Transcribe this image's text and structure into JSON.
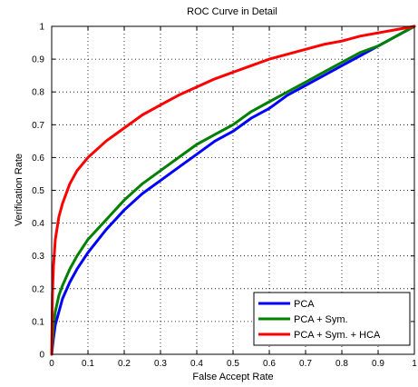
{
  "chart_data": {
    "type": "line",
    "title": "ROC Curve in Detail",
    "xlabel": "False Accept Rate",
    "ylabel": "Verification Rate",
    "xlim": [
      0,
      1
    ],
    "ylim": [
      0,
      1
    ],
    "xticks": [
      "0",
      "0.1",
      "0.2",
      "0.3",
      "0.4",
      "0.5",
      "0.6",
      "0.7",
      "0.8",
      "0.9",
      "1"
    ],
    "yticks": [
      "0",
      "0.1",
      "0.2",
      "0.3",
      "0.4",
      "0.5",
      "0.6",
      "0.7",
      "0.8",
      "0.9",
      "1"
    ],
    "grid": true,
    "legend_position": "bottom-right",
    "series": [
      {
        "name": "PCA",
        "color": "#0000ff",
        "x": [
          0,
          0.005,
          0.01,
          0.02,
          0.03,
          0.05,
          0.07,
          0.1,
          0.15,
          0.2,
          0.25,
          0.3,
          0.35,
          0.4,
          0.45,
          0.5,
          0.55,
          0.6,
          0.65,
          0.7,
          0.75,
          0.8,
          0.85,
          0.9,
          0.95,
          1.0
        ],
        "y": [
          0,
          0.05,
          0.09,
          0.13,
          0.17,
          0.22,
          0.26,
          0.31,
          0.38,
          0.44,
          0.49,
          0.53,
          0.57,
          0.61,
          0.65,
          0.68,
          0.72,
          0.75,
          0.79,
          0.82,
          0.85,
          0.88,
          0.91,
          0.94,
          0.97,
          1.0
        ]
      },
      {
        "name": "PCA + Sym.",
        "color": "#008000",
        "x": [
          0,
          0.005,
          0.01,
          0.02,
          0.03,
          0.05,
          0.07,
          0.1,
          0.15,
          0.2,
          0.25,
          0.3,
          0.35,
          0.4,
          0.45,
          0.5,
          0.55,
          0.6,
          0.65,
          0.7,
          0.75,
          0.8,
          0.85,
          0.9,
          0.95,
          1.0
        ],
        "y": [
          0,
          0.09,
          0.13,
          0.18,
          0.21,
          0.26,
          0.3,
          0.35,
          0.41,
          0.47,
          0.52,
          0.56,
          0.6,
          0.64,
          0.67,
          0.7,
          0.74,
          0.77,
          0.8,
          0.83,
          0.86,
          0.89,
          0.92,
          0.94,
          0.97,
          1.0
        ]
      },
      {
        "name": "PCA + Sym. + HCA",
        "color": "#ff0000",
        "x": [
          0,
          0.002,
          0.005,
          0.01,
          0.02,
          0.03,
          0.05,
          0.07,
          0.1,
          0.15,
          0.2,
          0.25,
          0.3,
          0.35,
          0.4,
          0.45,
          0.5,
          0.55,
          0.6,
          0.65,
          0.7,
          0.75,
          0.8,
          0.85,
          0.9,
          0.95,
          1.0
        ],
        "y": [
          0,
          0.18,
          0.27,
          0.35,
          0.42,
          0.46,
          0.52,
          0.56,
          0.6,
          0.65,
          0.69,
          0.73,
          0.76,
          0.79,
          0.815,
          0.84,
          0.86,
          0.88,
          0.9,
          0.915,
          0.93,
          0.945,
          0.955,
          0.97,
          0.98,
          0.99,
          1.0
        ]
      }
    ]
  }
}
